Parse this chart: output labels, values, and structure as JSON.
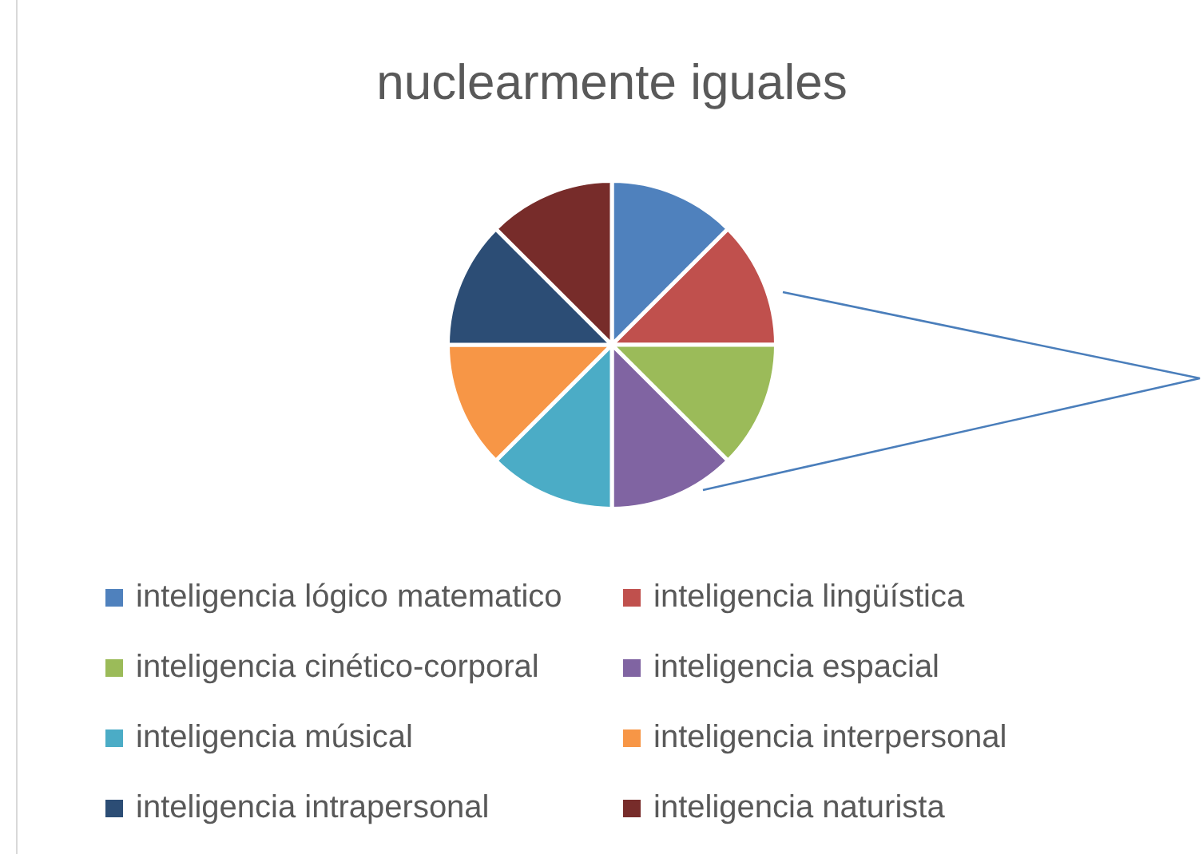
{
  "chart_data": {
    "type": "pie",
    "title": "nuclearmente iguales",
    "categories": [
      "inteligencia lógico matematico",
      "inteligencia lingüística",
      "inteligencia cinético-corporal",
      "inteligencia espacial",
      "inteligencia músical",
      "inteligencia interpersonal",
      "inteligencia intrapersonal",
      "inteligencia naturista"
    ],
    "values": [
      12.5,
      12.5,
      12.5,
      12.5,
      12.5,
      12.5,
      12.5,
      12.5
    ],
    "colors": [
      "#4f81bd",
      "#c0504d",
      "#9bbb59",
      "#8064a2",
      "#4bacc6",
      "#f79646",
      "#2c4d75",
      "#772c2a"
    ],
    "legend": "bottom"
  }
}
